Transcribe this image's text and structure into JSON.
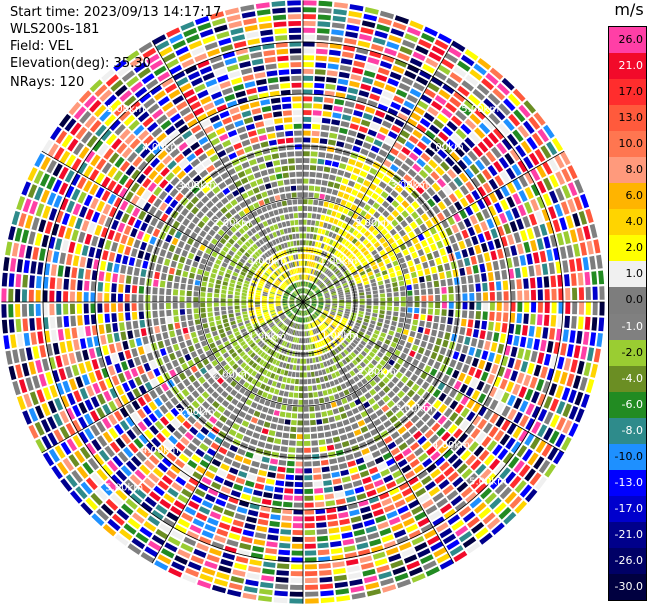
{
  "header": {
    "start_time": "Start time: 2023/09/13 14:17:17",
    "instrument": "WLS200s-181",
    "field": "Field: VEL",
    "elevation": "Elevation(deg): 35.30",
    "nrays": "NRays: 120"
  },
  "colorbar": {
    "unit": "m/s",
    "levels": [
      {
        "label": "26.0",
        "color": "#ff3fa6",
        "text": "#000000"
      },
      {
        "label": "21.0",
        "color": "#f20a2a",
        "text": "#ffffff"
      },
      {
        "label": "17.0",
        "color": "#ff2d2d",
        "text": "#000000"
      },
      {
        "label": "13.0",
        "color": "#ff5a3c",
        "text": "#000000"
      },
      {
        "label": "10.0",
        "color": "#ff7650",
        "text": "#000000"
      },
      {
        "label": "8.0",
        "color": "#ff9a7c",
        "text": "#000000"
      },
      {
        "label": "6.0",
        "color": "#ffb400",
        "text": "#000000"
      },
      {
        "label": "4.0",
        "color": "#ffd400",
        "text": "#000000"
      },
      {
        "label": "2.0",
        "color": "#ffff00",
        "text": "#000000"
      },
      {
        "label": "1.0",
        "color": "#f0f0f0",
        "text": "#000000"
      },
      {
        "label": "0.0",
        "color": "#7d7d7d",
        "text": "#000000"
      },
      {
        "label": "-1.0",
        "color": "#808080",
        "text": "#ffffff"
      },
      {
        "label": "-2.0",
        "color": "#9acd32",
        "text": "#000000"
      },
      {
        "label": "-4.0",
        "color": "#6b8e23",
        "text": "#ffffff"
      },
      {
        "label": "-6.0",
        "color": "#228b22",
        "text": "#ffffff"
      },
      {
        "label": "-8.0",
        "color": "#2e8b8b",
        "text": "#ffffff"
      },
      {
        "label": "-10.0",
        "color": "#1e90ff",
        "text": "#000000"
      },
      {
        "label": "-13.0",
        "color": "#0000ff",
        "text": "#ffffff"
      },
      {
        "label": "-17.0",
        "color": "#0000cd",
        "text": "#ffffff"
      },
      {
        "label": "-21.0",
        "color": "#00008b",
        "text": "#ffffff"
      },
      {
        "label": "-26.0",
        "color": "#000066",
        "text": "#ffffff"
      },
      {
        "label": "-30.0",
        "color": "#000040",
        "text": "#ffffff"
      }
    ]
  },
  "chart_data": {
    "type": "heatmap",
    "title": "",
    "field": "VEL",
    "unit": "m/s",
    "nrays": 120,
    "range_rings_km": [
      1.0,
      2.0,
      3.0,
      4.0,
      5.0
    ],
    "ring_labels": [
      "1.00km",
      "2.00km",
      "3.00km",
      "4.00km",
      "5.00km"
    ],
    "grid": true,
    "pattern": [
      {
        "range_km": [
          0.0,
          0.3
        ],
        "dominant": "-2.0 to 2.0"
      },
      {
        "range_km": [
          0.3,
          1.0
        ],
        "dominant": "2.0 to 4.0 ring with 0.0"
      },
      {
        "range_km": [
          1.0,
          2.0
        ],
        "dominant": "-2.0 and 0.0, 2.0 arcs"
      },
      {
        "range_km": [
          2.0,
          3.0
        ],
        "dominant": "0.0 mixed with -2.0"
      },
      {
        "range_km": [
          3.0,
          5.8
        ],
        "dominant": "noise across full scale -30.0 to 26.0"
      }
    ]
  }
}
